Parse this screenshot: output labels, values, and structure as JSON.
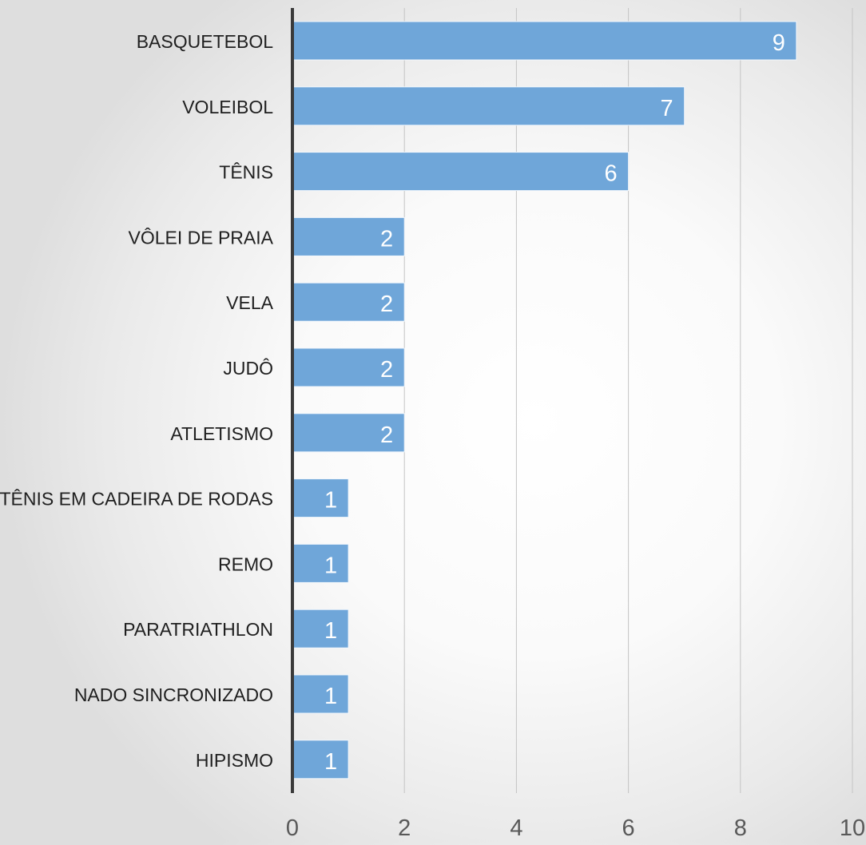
{
  "chart_data": {
    "type": "bar",
    "orientation": "horizontal",
    "categories": [
      "BASQUETEBOL",
      "VOLEIBOL",
      "TÊNIS",
      "VÔLEI DE PRAIA",
      "VELA",
      "JUDÔ",
      "ATLETISMO",
      "TÊNIS EM CADEIRA DE RODAS",
      "REMO",
      "PARATRIATHLON",
      "NADO SINCRONIZADO",
      "HIPISMO"
    ],
    "values": [
      9,
      7,
      6,
      2,
      2,
      2,
      2,
      1,
      1,
      1,
      1,
      1
    ],
    "title": "",
    "xlabel": "",
    "ylabel": "",
    "xlim": [
      0,
      10
    ],
    "x_ticks": [
      0,
      2,
      4,
      6,
      8,
      10
    ],
    "grid": true,
    "data_labels": true,
    "colors": {
      "bar": "#6fa6d9",
      "bar_stroke": "#f2f7fc",
      "gridline": "#c4c4c4",
      "axis": "#3a3a3a",
      "label_text": "#1f1f1f",
      "tick_text": "#595959",
      "data_label_text": "#ffffff"
    }
  }
}
